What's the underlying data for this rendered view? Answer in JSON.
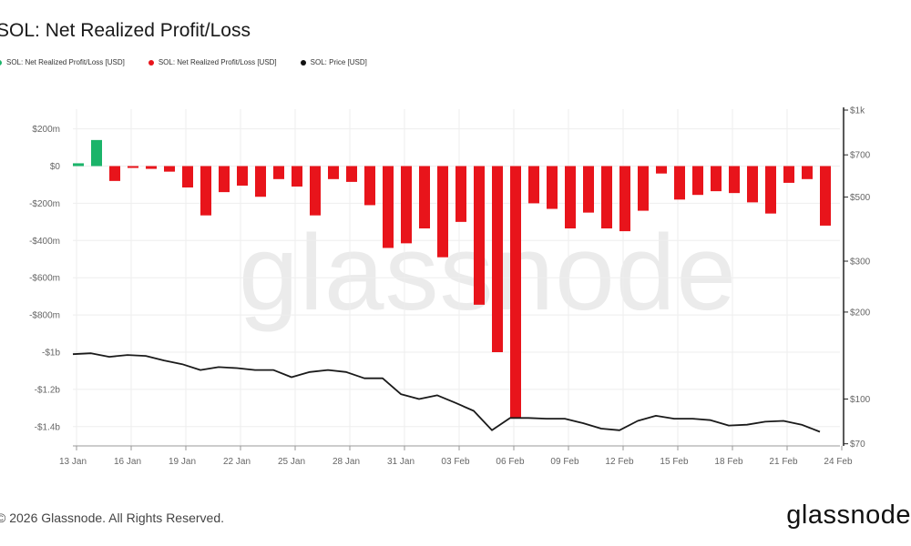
{
  "title": "SOL: Net Realized Profit/Loss",
  "legend": [
    {
      "label": "SOL: Net Realized Profit/Loss [USD]",
      "color": "#1bb46a"
    },
    {
      "label": "SOL: Net Realized Profit/Loss [USD]",
      "color": "#e8141b"
    },
    {
      "label": "SOL: Price [USD]",
      "color": "#111111"
    }
  ],
  "watermark": "glassnode",
  "footer": "© 2026 Glassnode. All Rights Reserved.",
  "brand": "glassnode",
  "colors": {
    "profit": "#1bb46a",
    "loss": "#e8141b",
    "price": "#1a1a1a",
    "grid": "#eeeeee",
    "axis_text": "#666666"
  },
  "chart_data": {
    "type": "bar",
    "title": "SOL: Net Realized Profit/Loss",
    "x_tick_labels": [
      "13 Jan",
      "16 Jan",
      "19 Jan",
      "22 Jan",
      "25 Jan",
      "28 Jan",
      "31 Jan",
      "03 Feb",
      "06 Feb",
      "09 Feb",
      "12 Feb",
      "15 Feb",
      "18 Feb",
      "21 Feb",
      "24 Feb"
    ],
    "y_left_ticks": [
      "$200m",
      "$0",
      "-$200m",
      "-$400m",
      "-$600m",
      "-$800m",
      "-$1b",
      "-$1.2b",
      "-$1.4b"
    ],
    "y_right_ticks": [
      "$1k",
      "$700",
      "$500",
      "$300",
      "$200",
      "$100",
      "$70"
    ],
    "y_left_range_usd_m": [
      -1450,
      250
    ],
    "y_right_range_usd": [
      70,
      1000
    ],
    "y_right_scale": "log",
    "grid": true,
    "legend_position": "top-left",
    "series": [
      {
        "name": "SOL: Net Realized Profit/Loss [USD]",
        "unit": "USD millions",
        "x": [
          "2026-01-13",
          "2026-01-14",
          "2026-01-15",
          "2026-01-16",
          "2026-01-17",
          "2026-01-18",
          "2026-01-19",
          "2026-01-20",
          "2026-01-21",
          "2026-01-22",
          "2026-01-23",
          "2026-01-24",
          "2026-01-25",
          "2026-01-26",
          "2026-01-27",
          "2026-01-28",
          "2026-01-29",
          "2026-01-30",
          "2026-01-31",
          "2026-02-01",
          "2026-02-02",
          "2026-02-03",
          "2026-02-04",
          "2026-02-05",
          "2026-02-06",
          "2026-02-07",
          "2026-02-08",
          "2026-02-09",
          "2026-02-10",
          "2026-02-11",
          "2026-02-12",
          "2026-02-13",
          "2026-02-14",
          "2026-02-15",
          "2026-02-16",
          "2026-02-17",
          "2026-02-18",
          "2026-02-19",
          "2026-02-20",
          "2026-02-21",
          "2026-02-22",
          "2026-02-23"
        ],
        "values": [
          15,
          140,
          -80,
          -10,
          -15,
          -30,
          -115,
          -265,
          -140,
          -105,
          -165,
          -70,
          -110,
          -265,
          -70,
          -85,
          -210,
          -440,
          -415,
          -335,
          -490,
          -300,
          -745,
          -1000,
          -1355,
          -200,
          -230,
          -335,
          -250,
          -335,
          -350,
          -240,
          -40,
          -180,
          -155,
          -135,
          -145,
          -195,
          -255,
          -90,
          -70,
          -320
        ]
      },
      {
        "name": "SOL: Price [USD]",
        "unit": "USD",
        "x": [
          "2026-01-13",
          "2026-01-14",
          "2026-01-15",
          "2026-01-16",
          "2026-01-17",
          "2026-01-18",
          "2026-01-19",
          "2026-01-20",
          "2026-01-21",
          "2026-01-22",
          "2026-01-23",
          "2026-01-24",
          "2026-01-25",
          "2026-01-26",
          "2026-01-27",
          "2026-01-28",
          "2026-01-29",
          "2026-01-30",
          "2026-01-31",
          "2026-02-01",
          "2026-02-02",
          "2026-02-03",
          "2026-02-04",
          "2026-02-05",
          "2026-02-06",
          "2026-02-07",
          "2026-02-08",
          "2026-02-09",
          "2026-02-10",
          "2026-02-11",
          "2026-02-12",
          "2026-02-13",
          "2026-02-14",
          "2026-02-15",
          "2026-02-16",
          "2026-02-17",
          "2026-02-18",
          "2026-02-19",
          "2026-02-20",
          "2026-02-21",
          "2026-02-22",
          "2026-02-23"
        ],
        "values": [
          143,
          144,
          140,
          142,
          141,
          136,
          132,
          126,
          129,
          128,
          126,
          126,
          119,
          124,
          126,
          124,
          118,
          118,
          104,
          100,
          103,
          97,
          91,
          78,
          86,
          86,
          85.5,
          85.5,
          82.5,
          79,
          78,
          84,
          87.5,
          85.5,
          85.5,
          84.5,
          81,
          81.5,
          83.5,
          84,
          81.5,
          77
        ]
      }
    ]
  }
}
